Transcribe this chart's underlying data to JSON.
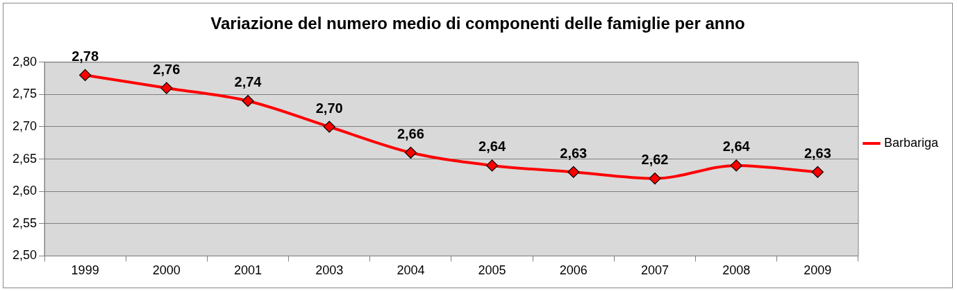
{
  "chart_data": {
    "type": "line",
    "title": "Variazione del numero medio di componenti delle famiglie per anno",
    "categories": [
      "1999",
      "2000",
      "2001",
      "2003",
      "2004",
      "2005",
      "2006",
      "2007",
      "2008",
      "2009"
    ],
    "series": [
      {
        "name": "Barbariga",
        "color": "#ff0000",
        "values": [
          2.78,
          2.76,
          2.74,
          2.7,
          2.66,
          2.64,
          2.63,
          2.62,
          2.64,
          2.63
        ],
        "value_labels": [
          "2,78",
          "2,76",
          "2,74",
          "2,70",
          "2,66",
          "2,64",
          "2,63",
          "2,62",
          "2,64",
          "2,63"
        ]
      }
    ],
    "ylim": [
      2.5,
      2.8
    ],
    "yticks": [
      {
        "value": 2.5,
        "label": "2,50"
      },
      {
        "value": 2.55,
        "label": "2,55"
      },
      {
        "value": 2.6,
        "label": "2,60"
      },
      {
        "value": 2.65,
        "label": "2,65"
      },
      {
        "value": 2.7,
        "label": "2,70"
      },
      {
        "value": 2.75,
        "label": "2,75"
      },
      {
        "value": 2.8,
        "label": "2,80"
      }
    ],
    "grid": "y",
    "legend": "right",
    "marker": "diamond",
    "line_style": "solid"
  }
}
